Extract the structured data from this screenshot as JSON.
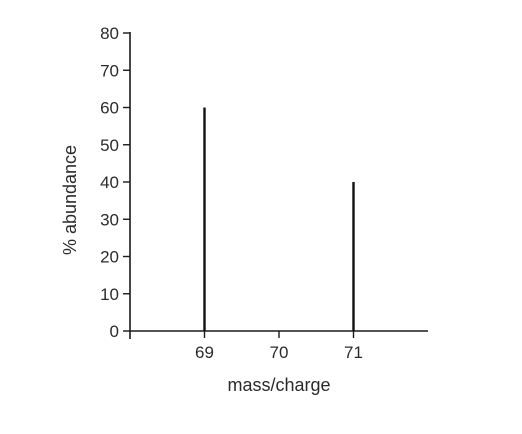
{
  "chart_data": {
    "type": "bar",
    "subtype": "stick",
    "title": "",
    "xlabel": "mass/charge",
    "ylabel": "% abundance",
    "xlim": [
      68,
      72
    ],
    "ylim": [
      0,
      80
    ],
    "x_ticks": [
      69,
      70,
      71
    ],
    "y_ticks": [
      0,
      10,
      20,
      30,
      40,
      50,
      60,
      70,
      80
    ],
    "categories": [
      "69",
      "71"
    ],
    "x": [
      69,
      71
    ],
    "values": [
      60,
      40
    ],
    "grid": false,
    "colors": {
      "axis": "#1a1a1a",
      "bar": "#111111",
      "text": "#2b2b2b",
      "background": "#ffffff"
    }
  }
}
